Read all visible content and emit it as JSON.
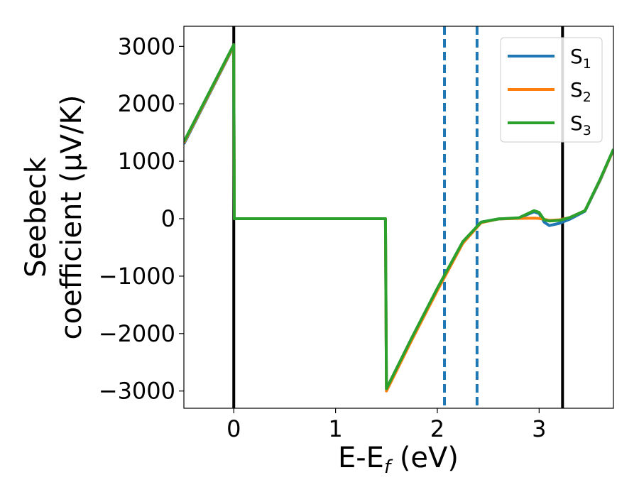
{
  "chart_data": {
    "type": "line",
    "title": "",
    "xlabel": "E-E_f (eV)",
    "ylabel_line1": "Seebeck",
    "ylabel_line2": "coefficient  (μV/K)",
    "xlim": [
      -0.49,
      3.73
    ],
    "ylim": [
      -3300,
      3350
    ],
    "x_ticks": [
      0,
      1,
      2,
      3
    ],
    "x_tick_labels": [
      "0",
      "1",
      "2",
      "3"
    ],
    "y_ticks": [
      3000,
      2000,
      1000,
      0,
      -1000,
      -2000,
      -3000
    ],
    "y_tick_labels": [
      "3000",
      "2000",
      "1000",
      "0",
      "−1000",
      "−2000",
      "−3000"
    ],
    "grid": false,
    "legend_position": "top-right",
    "vertical_lines": [
      {
        "x": 0.0,
        "style": "solid",
        "color": "#000000"
      },
      {
        "x": 2.07,
        "style": "dashed",
        "color": "#1f77b4"
      },
      {
        "x": 2.39,
        "style": "dashed",
        "color": "#1f77b4"
      },
      {
        "x": 3.23,
        "style": "solid",
        "color": "#000000"
      }
    ],
    "series": [
      {
        "name": "S1",
        "sub": "1",
        "color": "#1f77b4",
        "points": [
          [
            -0.49,
            1300
          ],
          [
            0.0,
            3000
          ],
          [
            0.005,
            0
          ],
          [
            1.49,
            0
          ],
          [
            1.5,
            -2960
          ],
          [
            1.75,
            -2080
          ],
          [
            2.0,
            -1220
          ],
          [
            2.25,
            -410
          ],
          [
            2.43,
            -60
          ],
          [
            2.6,
            -5
          ],
          [
            2.8,
            10
          ],
          [
            2.95,
            120
          ],
          [
            3.0,
            90
          ],
          [
            3.05,
            -60
          ],
          [
            3.1,
            -120
          ],
          [
            3.2,
            -80
          ],
          [
            3.3,
            -10
          ],
          [
            3.45,
            130
          ],
          [
            3.6,
            670
          ],
          [
            3.73,
            1200
          ]
        ]
      },
      {
        "name": "S2",
        "sub": "2",
        "color": "#ff7f0e",
        "points": [
          [
            -0.49,
            1320
          ],
          [
            0.0,
            3010
          ],
          [
            0.005,
            0
          ],
          [
            1.49,
            0
          ],
          [
            1.5,
            -3000
          ],
          [
            1.75,
            -2110
          ],
          [
            2.0,
            -1250
          ],
          [
            2.25,
            -430
          ],
          [
            2.43,
            -70
          ],
          [
            2.6,
            -5
          ],
          [
            2.8,
            5
          ],
          [
            2.95,
            10
          ],
          [
            3.0,
            5
          ],
          [
            3.05,
            -10
          ],
          [
            3.1,
            -30
          ],
          [
            3.2,
            -20
          ],
          [
            3.3,
            20
          ],
          [
            3.45,
            140
          ],
          [
            3.6,
            680
          ],
          [
            3.73,
            1200
          ]
        ]
      },
      {
        "name": "S3",
        "sub": "3",
        "color": "#2ca02c",
        "points": [
          [
            -0.49,
            1340
          ],
          [
            0.0,
            3030
          ],
          [
            0.005,
            0
          ],
          [
            1.49,
            0
          ],
          [
            1.5,
            -2960
          ],
          [
            1.75,
            -2070
          ],
          [
            2.0,
            -1210
          ],
          [
            2.25,
            -400
          ],
          [
            2.43,
            -60
          ],
          [
            2.6,
            -5
          ],
          [
            2.8,
            15
          ],
          [
            2.95,
            140
          ],
          [
            3.0,
            110
          ],
          [
            3.05,
            -20
          ],
          [
            3.1,
            -40
          ],
          [
            3.2,
            -30
          ],
          [
            3.3,
            20
          ],
          [
            3.45,
            140
          ],
          [
            3.6,
            690
          ],
          [
            3.73,
            1210
          ]
        ]
      }
    ]
  }
}
